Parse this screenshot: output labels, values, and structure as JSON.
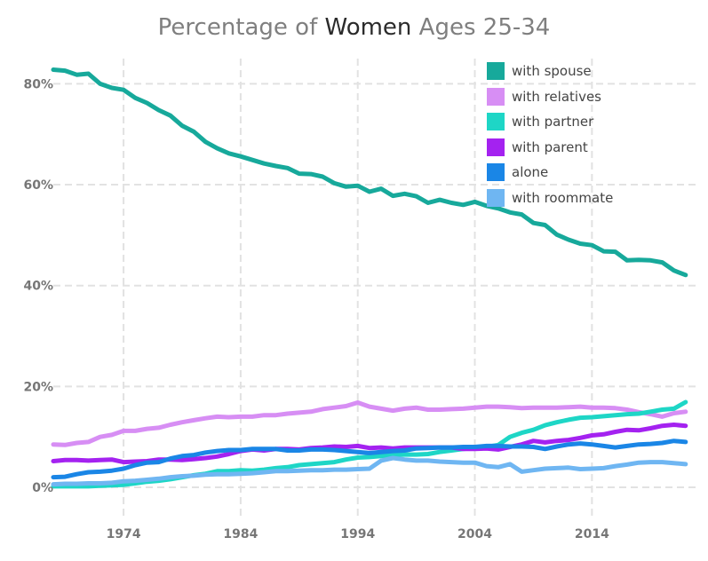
{
  "chart_data": {
    "type": "line",
    "title_parts": [
      "Percentage of ",
      "Women",
      " Ages 25-34"
    ],
    "xlabel": "",
    "ylabel": "",
    "xlim": [
      1968,
      2023
    ],
    "ylim": [
      0,
      85
    ],
    "x_ticks": [
      1974,
      1984,
      1994,
      2004,
      2014
    ],
    "x_tick_labels": [
      "1974",
      "1984",
      "1994",
      "2004",
      "2014"
    ],
    "y_ticks": [
      0,
      20,
      40,
      60,
      80
    ],
    "y_tick_labels": [
      "0%",
      "20%",
      "40%",
      "60%",
      "80%"
    ],
    "grid": true,
    "legend_position": "top-right",
    "years": [
      1968,
      1969,
      1970,
      1971,
      1972,
      1973,
      1974,
      1975,
      1976,
      1977,
      1978,
      1979,
      1980,
      1981,
      1982,
      1983,
      1984,
      1985,
      1986,
      1987,
      1988,
      1989,
      1990,
      1991,
      1992,
      1993,
      1994,
      1995,
      1996,
      1997,
      1998,
      1999,
      2000,
      2001,
      2002,
      2003,
      2004,
      2005,
      2006,
      2007,
      2008,
      2009,
      2010,
      2011,
      2012,
      2013,
      2014,
      2015,
      2016,
      2017,
      2018,
      2019,
      2020,
      2021,
      2022
    ],
    "series": [
      {
        "name": "with spouse",
        "color": "#17a99b",
        "values": [
          82.8,
          82.6,
          81.8,
          82.0,
          80.0,
          79.2,
          78.8,
          77.2,
          76.2,
          74.8,
          73.7,
          71.7,
          70.5,
          68.5,
          67.2,
          66.2,
          65.6,
          64.9,
          64.2,
          63.7,
          63.3,
          62.2,
          62.1,
          61.6,
          60.3,
          59.6,
          59.8,
          58.6,
          59.2,
          57.8,
          58.2,
          57.7,
          56.4,
          57.0,
          56.4,
          56.0,
          56.6,
          55.8,
          55.3,
          54.5,
          54.1,
          52.4,
          52.0,
          50.1,
          49.1,
          48.3,
          48.0,
          46.8,
          46.7,
          45.0,
          45.1,
          45.0,
          44.6,
          43.0,
          42.1
        ]
      },
      {
        "name": "with relatives",
        "color": "#d78ef4",
        "values": [
          8.5,
          8.4,
          8.8,
          9.0,
          10.0,
          10.4,
          11.2,
          11.2,
          11.6,
          11.8,
          12.4,
          12.9,
          13.3,
          13.7,
          14.0,
          13.9,
          14.0,
          14.0,
          14.3,
          14.3,
          14.6,
          14.8,
          15.0,
          15.5,
          15.8,
          16.1,
          16.8,
          16.0,
          15.6,
          15.2,
          15.6,
          15.8,
          15.4,
          15.4,
          15.5,
          15.6,
          15.8,
          16.0,
          16.0,
          15.9,
          15.7,
          15.8,
          15.8,
          15.8,
          15.9,
          16.0,
          15.8,
          15.8,
          15.7,
          15.4,
          14.9,
          14.5,
          14.0,
          14.7,
          15.0
        ]
      },
      {
        "name": "with partner",
        "color": "#1ed6c6",
        "values": [
          0.2,
          0.2,
          0.2,
          0.2,
          0.3,
          0.4,
          0.5,
          0.8,
          1.1,
          1.3,
          1.6,
          2.0,
          2.4,
          2.7,
          3.2,
          3.2,
          3.4,
          3.3,
          3.5,
          3.8,
          4.0,
          4.4,
          4.6,
          4.8,
          5.0,
          5.5,
          5.9,
          6.0,
          6.2,
          6.4,
          6.5,
          6.5,
          6.6,
          7.0,
          7.3,
          7.6,
          7.8,
          8.0,
          8.4,
          10.0,
          10.8,
          11.4,
          12.3,
          12.9,
          13.4,
          13.8,
          13.9,
          14.1,
          14.3,
          14.5,
          14.6,
          15.0,
          15.4,
          15.6,
          16.9
        ]
      },
      {
        "name": "with parent",
        "color": "#a422f0",
        "values": [
          5.2,
          5.4,
          5.4,
          5.3,
          5.4,
          5.5,
          5.0,
          5.1,
          5.2,
          5.5,
          5.5,
          5.4,
          5.6,
          5.8,
          6.1,
          6.6,
          7.2,
          7.5,
          7.3,
          7.6,
          7.6,
          7.5,
          7.8,
          7.9,
          8.1,
          8.0,
          8.2,
          7.8,
          7.9,
          7.7,
          7.9,
          7.9,
          7.9,
          7.9,
          7.9,
          7.6,
          7.6,
          7.7,
          7.5,
          8.0,
          8.5,
          9.2,
          8.9,
          9.2,
          9.4,
          9.8,
          10.3,
          10.5,
          11.0,
          11.4,
          11.3,
          11.7,
          12.2,
          12.4,
          12.2
        ]
      },
      {
        "name": "alone",
        "color": "#1a86e6",
        "values": [
          2.0,
          2.1,
          2.6,
          3.0,
          3.1,
          3.3,
          3.7,
          4.4,
          4.9,
          5.0,
          5.7,
          6.2,
          6.4,
          6.9,
          7.2,
          7.4,
          7.4,
          7.6,
          7.6,
          7.6,
          7.3,
          7.3,
          7.5,
          7.5,
          7.4,
          7.2,
          7.0,
          6.8,
          7.0,
          7.2,
          7.3,
          7.7,
          7.8,
          7.9,
          7.9,
          8.0,
          8.0,
          8.2,
          8.2,
          8.1,
          8.1,
          8.0,
          7.6,
          8.1,
          8.5,
          8.7,
          8.5,
          8.2,
          7.9,
          8.2,
          8.5,
          8.6,
          8.8,
          9.2,
          9.0
        ]
      },
      {
        "name": "with roommate",
        "color": "#6fb6f2",
        "values": [
          0.6,
          0.7,
          0.7,
          0.8,
          0.8,
          0.9,
          1.2,
          1.3,
          1.5,
          1.7,
          2.0,
          2.2,
          2.3,
          2.5,
          2.6,
          2.6,
          2.7,
          2.8,
          3.0,
          3.2,
          3.2,
          3.3,
          3.4,
          3.4,
          3.5,
          3.5,
          3.6,
          3.7,
          5.3,
          5.8,
          5.5,
          5.3,
          5.3,
          5.1,
          5.0,
          4.9,
          4.9,
          4.2,
          4.0,
          4.6,
          3.1,
          3.4,
          3.7,
          3.8,
          3.9,
          3.6,
          3.7,
          3.8,
          4.2,
          4.5,
          4.9,
          5.0,
          5.0,
          4.8,
          4.6
        ]
      }
    ]
  }
}
